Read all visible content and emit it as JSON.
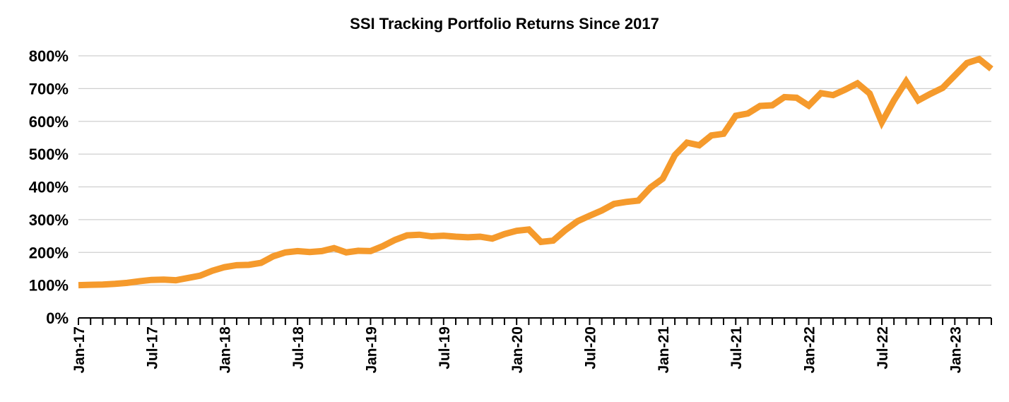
{
  "chart_data": {
    "type": "line",
    "title": "SSI Tracking Portfolio Returns Since 2017",
    "xlabel": "",
    "ylabel": "",
    "ylim": [
      0,
      800
    ],
    "yticks": [
      0,
      100,
      200,
      300,
      400,
      500,
      600,
      700,
      800
    ],
    "ytick_labels": [
      "0%",
      "100%",
      "200%",
      "300%",
      "400%",
      "500%",
      "600%",
      "700%",
      "800%"
    ],
    "x_tick_labels": [
      "Jan-17",
      "Jul-17",
      "Jan-18",
      "Jul-18",
      "Jan-19",
      "Jul-19",
      "Jan-20",
      "Jul-20",
      "Jan-21",
      "Jul-21",
      "Jan-22",
      "Jul-22",
      "Jan-23"
    ],
    "x_tick_every_months": 6,
    "grid": true,
    "series": [
      {
        "name": "SSI Tracking Portfolio",
        "color": "#F59A2C",
        "start": "Jan-17",
        "frequency": "monthly",
        "values": [
          100,
          101,
          102,
          104,
          107,
          112,
          116,
          117,
          115,
          122,
          129,
          144,
          155,
          161,
          162,
          168,
          188,
          200,
          204,
          201,
          204,
          213,
          200,
          205,
          204,
          219,
          238,
          252,
          254,
          249,
          251,
          248,
          246,
          248,
          242,
          256,
          266,
          270,
          232,
          236,
          268,
          295,
          312,
          328,
          348,
          354,
          358,
          398,
          425,
          497,
          535,
          527,
          557,
          562,
          617,
          624,
          647,
          649,
          674,
          672,
          648,
          686,
          680,
          697,
          716,
          685,
          597,
          664,
          722,
          664,
          684,
          702,
          740,
          778,
          790,
          760
        ]
      }
    ]
  }
}
